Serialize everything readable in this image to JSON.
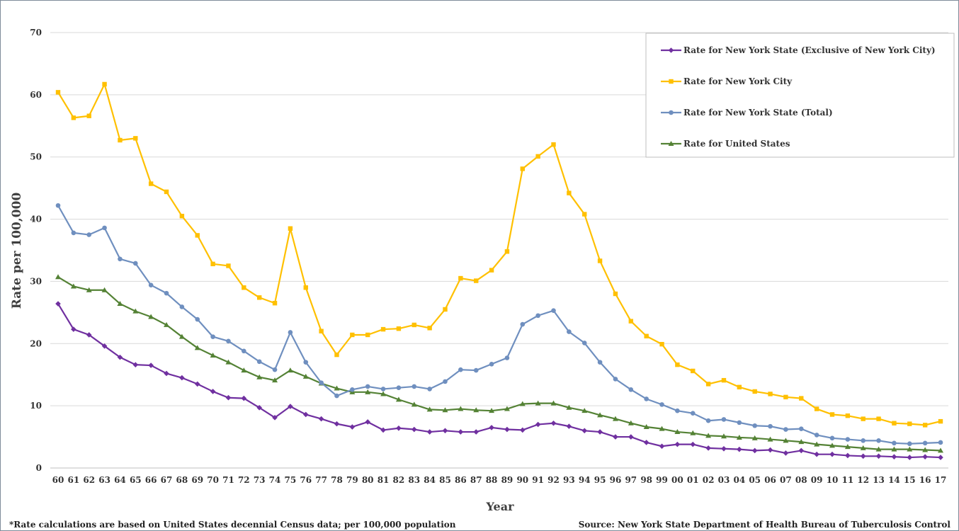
{
  "chart_data": {
    "type": "line",
    "title": "",
    "xlabel": "Year",
    "ylabel": "Rate per 100,000",
    "ylim": [
      0,
      70
    ],
    "y_ticks": [
      0,
      10,
      20,
      30,
      40,
      50,
      60,
      70
    ],
    "grid": "horizontal",
    "legend_position": "top-right",
    "categories": [
      "60",
      "61",
      "62",
      "63",
      "64",
      "65",
      "66",
      "67",
      "68",
      "69",
      "70",
      "71",
      "72",
      "73",
      "74",
      "75",
      "76",
      "77",
      "78",
      "79",
      "80",
      "81",
      "82",
      "83",
      "84",
      "85",
      "86",
      "87",
      "88",
      "89",
      "90",
      "91",
      "92",
      "93",
      "94",
      "95",
      "96",
      "97",
      "98",
      "99",
      "00",
      "01",
      "02",
      "03",
      "04",
      "05",
      "06",
      "07",
      "08",
      "09",
      "10",
      "11",
      "12",
      "13",
      "14",
      "15",
      "16",
      "17"
    ],
    "series": [
      {
        "name": "Rate for New York State (Exclusive of New York City)",
        "color": "#7030a0",
        "marker": "diamond",
        "values": [
          26.4,
          22.3,
          21.4,
          19.6,
          17.8,
          16.6,
          16.5,
          15.2,
          14.5,
          13.5,
          12.3,
          11.3,
          11.2,
          9.7,
          8.1,
          9.9,
          8.6,
          7.9,
          7.1,
          6.6,
          7.4,
          6.1,
          6.4,
          6.2,
          5.8,
          6.0,
          5.8,
          5.8,
          6.5,
          6.2,
          6.1,
          7.0,
          7.2,
          6.7,
          6.0,
          5.8,
          5.0,
          5.0,
          4.1,
          3.5,
          3.8,
          3.8,
          3.2,
          3.1,
          3.0,
          2.8,
          2.9,
          2.4,
          2.8,
          2.2,
          2.2,
          2.0,
          1.9,
          1.9,
          1.8,
          1.7,
          1.8,
          1.7
        ]
      },
      {
        "name": "Rate for New York City",
        "color": "#ffc000",
        "marker": "square",
        "values": [
          60.4,
          56.3,
          56.6,
          61.7,
          52.7,
          53.0,
          45.7,
          44.4,
          40.5,
          37.4,
          32.8,
          32.5,
          29.0,
          27.4,
          26.5,
          38.5,
          29.0,
          22.0,
          18.2,
          21.4,
          21.4,
          22.3,
          22.4,
          23.0,
          22.5,
          25.5,
          30.5,
          30.1,
          31.8,
          34.8,
          48.1,
          50.1,
          52.0,
          44.2,
          40.8,
          33.3,
          28.0,
          23.6,
          21.2,
          19.9,
          16.6,
          15.6,
          13.5,
          14.1,
          13.0,
          12.3,
          11.9,
          11.4,
          11.2,
          9.5,
          8.6,
          8.4,
          7.9,
          7.9,
          7.2,
          7.1,
          6.9,
          7.5
        ]
      },
      {
        "name": "Rate for New York State (Total)",
        "color": "#6f8fbf",
        "marker": "circle",
        "values": [
          42.2,
          37.8,
          37.5,
          38.6,
          33.6,
          32.9,
          29.4,
          28.1,
          25.9,
          23.9,
          21.1,
          20.4,
          18.8,
          17.1,
          15.8,
          21.8,
          17.0,
          13.7,
          11.6,
          12.6,
          13.1,
          12.7,
          12.9,
          13.1,
          12.7,
          13.9,
          15.8,
          15.7,
          16.7,
          17.7,
          23.1,
          24.5,
          25.3,
          21.9,
          20.1,
          17.0,
          14.3,
          12.6,
          11.1,
          10.2,
          9.2,
          8.8,
          7.6,
          7.8,
          7.3,
          6.8,
          6.7,
          6.2,
          6.3,
          5.3,
          4.8,
          4.6,
          4.4,
          4.4,
          4.0,
          3.9,
          4.0,
          4.1
        ]
      },
      {
        "name": "Rate for United States",
        "color": "#548235",
        "marker": "triangle",
        "values": [
          30.7,
          29.2,
          28.6,
          28.6,
          26.4,
          25.2,
          24.3,
          23.0,
          21.1,
          19.3,
          18.1,
          17.0,
          15.7,
          14.6,
          14.1,
          15.7,
          14.7,
          13.6,
          12.8,
          12.2,
          12.2,
          11.9,
          11.0,
          10.2,
          9.4,
          9.3,
          9.5,
          9.3,
          9.2,
          9.5,
          10.3,
          10.4,
          10.4,
          9.7,
          9.2,
          8.5,
          7.9,
          7.2,
          6.6,
          6.3,
          5.8,
          5.6,
          5.2,
          5.1,
          4.9,
          4.8,
          4.6,
          4.4,
          4.2,
          3.8,
          3.6,
          3.4,
          3.2,
          3.0,
          3.0,
          3.0,
          2.9,
          2.8
        ]
      }
    ]
  },
  "footnote_left": "*Rate calculations are based on United States decennial Census data; per 100,000 population",
  "footnote_right": "Source: New York State Department of Health Bureau of Tuberculosis Control"
}
